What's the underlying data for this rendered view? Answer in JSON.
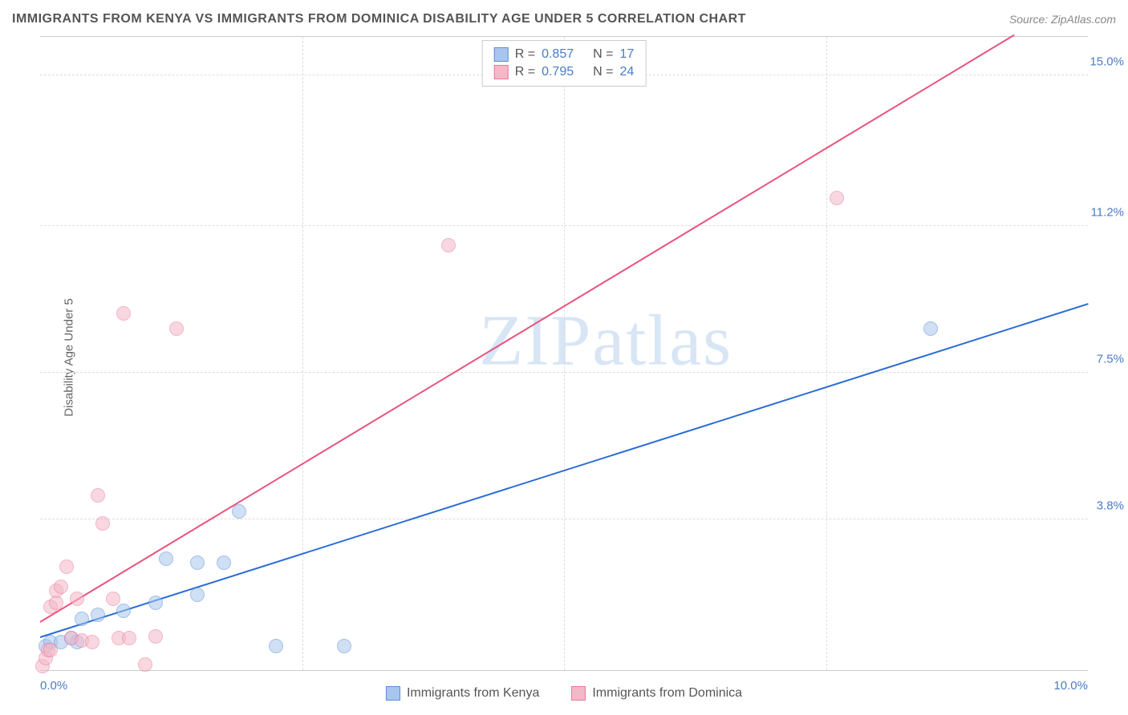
{
  "title": "IMMIGRANTS FROM KENYA VS IMMIGRANTS FROM DOMINICA DISABILITY AGE UNDER 5 CORRELATION CHART",
  "source": "Source: ZipAtlas.com",
  "y_axis_label": "Disability Age Under 5",
  "watermark": "ZIPatlas",
  "chart": {
    "type": "scatter",
    "background_color": "#ffffff",
    "grid_color": "#dddddd",
    "axis_color": "#cccccc",
    "tick_color": "#4a7bc8",
    "tick_fontsize": 15,
    "title_fontsize": 16,
    "title_color": "#555555",
    "label_fontsize": 15,
    "label_color": "#666666",
    "xlim": [
      0,
      10
    ],
    "ylim": [
      0,
      16
    ],
    "x_ticks": [
      {
        "value": 0.0,
        "label": "0.0%"
      },
      {
        "value": 10.0,
        "label": "10.0%"
      }
    ],
    "y_ticks": [
      {
        "value": 3.8,
        "label": "3.8%"
      },
      {
        "value": 7.5,
        "label": "7.5%"
      },
      {
        "value": 11.2,
        "label": "11.2%"
      },
      {
        "value": 15.0,
        "label": "15.0%"
      }
    ],
    "x_gridlines": [
      2.5,
      5.0,
      7.5
    ],
    "point_radius": 9,
    "point_opacity": 0.55,
    "line_width": 2
  },
  "series": [
    {
      "name": "Immigrants from Kenya",
      "fill_color": "#a8c5ec",
      "stroke_color": "#5b8fd6",
      "line_color": "#2b6cd4",
      "r": "0.857",
      "n": "17",
      "points": [
        [
          0.05,
          0.6
        ],
        [
          0.1,
          0.7
        ],
        [
          0.2,
          0.7
        ],
        [
          0.3,
          0.8
        ],
        [
          0.35,
          0.7
        ],
        [
          0.4,
          1.3
        ],
        [
          0.55,
          1.4
        ],
        [
          0.8,
          1.5
        ],
        [
          1.1,
          1.7
        ],
        [
          1.2,
          2.8
        ],
        [
          1.5,
          1.9
        ],
        [
          1.5,
          2.7
        ],
        [
          1.75,
          2.7
        ],
        [
          1.9,
          4.0
        ],
        [
          2.25,
          0.6
        ],
        [
          2.9,
          0.6
        ],
        [
          8.5,
          8.6
        ]
      ],
      "trend": {
        "x1": 0,
        "y1": 0.8,
        "x2": 10,
        "y2": 9.2
      }
    },
    {
      "name": "Immigrants from Dominica",
      "fill_color": "#f4b8c8",
      "stroke_color": "#e77a9a",
      "line_color": "#e8547d",
      "r": "0.795",
      "n": "24",
      "points": [
        [
          0.02,
          0.1
        ],
        [
          0.05,
          0.3
        ],
        [
          0.08,
          0.5
        ],
        [
          0.1,
          0.5
        ],
        [
          0.1,
          1.6
        ],
        [
          0.15,
          1.7
        ],
        [
          0.15,
          2.0
        ],
        [
          0.2,
          2.1
        ],
        [
          0.25,
          2.6
        ],
        [
          0.3,
          0.8
        ],
        [
          0.35,
          1.8
        ],
        [
          0.4,
          0.75
        ],
        [
          0.5,
          0.7
        ],
        [
          0.55,
          4.4
        ],
        [
          0.6,
          3.7
        ],
        [
          0.7,
          1.8
        ],
        [
          0.75,
          0.8
        ],
        [
          0.8,
          9.0
        ],
        [
          0.85,
          0.8
        ],
        [
          1.0,
          0.15
        ],
        [
          1.1,
          0.85
        ],
        [
          1.3,
          8.6
        ],
        [
          3.9,
          10.7
        ],
        [
          7.6,
          11.9
        ]
      ],
      "trend": {
        "x1": 0,
        "y1": 1.2,
        "x2": 9.3,
        "y2": 16.0
      }
    }
  ],
  "legend_stats": {
    "r_label": "R =",
    "n_label": "N ="
  }
}
